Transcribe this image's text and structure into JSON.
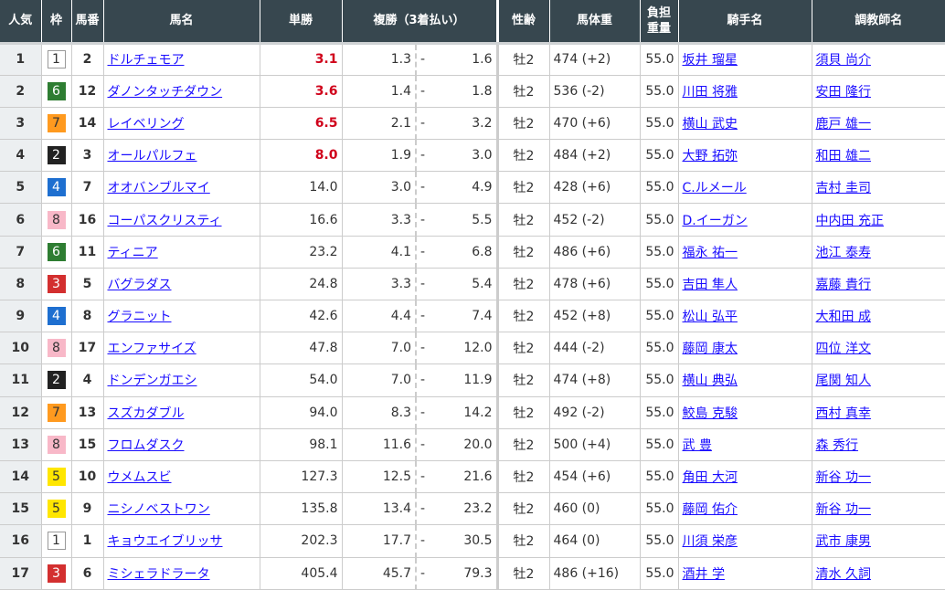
{
  "headers": {
    "rank": "人気",
    "waku": "枠",
    "num": "馬番",
    "name": "馬名",
    "win": "単勝",
    "place": "複勝（3着払い）",
    "sexage": "性齢",
    "weight": "馬体重",
    "burden_1": "負担",
    "burden_2": "重量",
    "jockey": "騎手名",
    "trainer": "調教師名"
  },
  "waku_colors": {
    "1": [
      "#ffffff",
      "#333333"
    ],
    "2": [
      "#222222",
      "#ffffff"
    ],
    "3": [
      "#d32f2f",
      "#ffffff"
    ],
    "4": [
      "#1e6fd0",
      "#ffffff"
    ],
    "5": [
      "#ffe600",
      "#333333"
    ],
    "6": [
      "#2e7d32",
      "#ffffff"
    ],
    "7": [
      "#ff9a1f",
      "#333333"
    ],
    "8": [
      "#f8b8c8",
      "#333333"
    ]
  },
  "place_sep": "-",
  "rows": [
    {
      "rank": "1",
      "waku": "1",
      "num": "2",
      "name": "ドルチェモア",
      "win": "3.1",
      "hot": true,
      "pmin": "1.3",
      "pmax": "1.6",
      "sexage": "牡2",
      "weight": "474 (+2)",
      "burden": "55.0",
      "jockey": "坂井 瑠星",
      "trainer": "須貝 尚介"
    },
    {
      "rank": "2",
      "waku": "6",
      "num": "12",
      "name": "ダノンタッチダウン",
      "win": "3.6",
      "hot": true,
      "pmin": "1.4",
      "pmax": "1.8",
      "sexage": "牡2",
      "weight": "536 (-2)",
      "burden": "55.0",
      "jockey": "川田 将雅",
      "trainer": "安田 隆行"
    },
    {
      "rank": "3",
      "waku": "7",
      "num": "14",
      "name": "レイベリング",
      "win": "6.5",
      "hot": true,
      "pmin": "2.1",
      "pmax": "3.2",
      "sexage": "牡2",
      "weight": "470 (+6)",
      "burden": "55.0",
      "jockey": "横山 武史",
      "trainer": "鹿戸 雄一"
    },
    {
      "rank": "4",
      "waku": "2",
      "num": "3",
      "name": "オールパルフェ",
      "win": "8.0",
      "hot": true,
      "pmin": "1.9",
      "pmax": "3.0",
      "sexage": "牡2",
      "weight": "484 (+2)",
      "burden": "55.0",
      "jockey": "大野 拓弥",
      "trainer": "和田 雄二"
    },
    {
      "rank": "5",
      "waku": "4",
      "num": "7",
      "name": "オオバンブルマイ",
      "win": "14.0",
      "hot": false,
      "pmin": "3.0",
      "pmax": "4.9",
      "sexage": "牡2",
      "weight": "428 (+6)",
      "burden": "55.0",
      "jockey": "C.ルメール",
      "trainer": "吉村 圭司"
    },
    {
      "rank": "6",
      "waku": "8",
      "num": "16",
      "name": "コーパスクリスティ",
      "win": "16.6",
      "hot": false,
      "pmin": "3.3",
      "pmax": "5.5",
      "sexage": "牡2",
      "weight": "452 (-2)",
      "burden": "55.0",
      "jockey": "D.イーガン",
      "trainer": "中内田 充正"
    },
    {
      "rank": "7",
      "waku": "6",
      "num": "11",
      "name": "ティニア",
      "win": "23.2",
      "hot": false,
      "pmin": "4.1",
      "pmax": "6.8",
      "sexage": "牡2",
      "weight": "486 (+6)",
      "burden": "55.0",
      "jockey": "福永 祐一",
      "trainer": "池江 泰寿"
    },
    {
      "rank": "8",
      "waku": "3",
      "num": "5",
      "name": "バグラダス",
      "win": "24.8",
      "hot": false,
      "pmin": "3.3",
      "pmax": "5.4",
      "sexage": "牡2",
      "weight": "478 (+6)",
      "burden": "55.0",
      "jockey": "吉田 隼人",
      "trainer": "嘉藤 貴行"
    },
    {
      "rank": "9",
      "waku": "4",
      "num": "8",
      "name": "グラニット",
      "win": "42.6",
      "hot": false,
      "pmin": "4.4",
      "pmax": "7.4",
      "sexage": "牡2",
      "weight": "452 (+8)",
      "burden": "55.0",
      "jockey": "松山 弘平",
      "trainer": "大和田 成"
    },
    {
      "rank": "10",
      "waku": "8",
      "num": "17",
      "name": "エンファサイズ",
      "win": "47.8",
      "hot": false,
      "pmin": "7.0",
      "pmax": "12.0",
      "sexage": "牡2",
      "weight": "444 (-2)",
      "burden": "55.0",
      "jockey": "藤岡 康太",
      "trainer": "四位 洋文"
    },
    {
      "rank": "11",
      "waku": "2",
      "num": "4",
      "name": "ドンデンガエシ",
      "win": "54.0",
      "hot": false,
      "pmin": "7.0",
      "pmax": "11.9",
      "sexage": "牡2",
      "weight": "474 (+8)",
      "burden": "55.0",
      "jockey": "横山 典弘",
      "trainer": "尾関 知人"
    },
    {
      "rank": "12",
      "waku": "7",
      "num": "13",
      "name": "スズカダブル",
      "win": "94.0",
      "hot": false,
      "pmin": "8.3",
      "pmax": "14.2",
      "sexage": "牡2",
      "weight": "492 (-2)",
      "burden": "55.0",
      "jockey": "鮫島 克駿",
      "trainer": "西村 真幸"
    },
    {
      "rank": "13",
      "waku": "8",
      "num": "15",
      "name": "フロムダスク",
      "win": "98.1",
      "hot": false,
      "pmin": "11.6",
      "pmax": "20.0",
      "sexage": "牡2",
      "weight": "500 (+4)",
      "burden": "55.0",
      "jockey": "武 豊",
      "trainer": "森 秀行"
    },
    {
      "rank": "14",
      "waku": "5",
      "num": "10",
      "name": "ウメムスビ",
      "win": "127.3",
      "hot": false,
      "pmin": "12.5",
      "pmax": "21.6",
      "sexage": "牡2",
      "weight": "454 (+6)",
      "burden": "55.0",
      "jockey": "角田 大河",
      "trainer": "新谷 功一"
    },
    {
      "rank": "15",
      "waku": "5",
      "num": "9",
      "name": "ニシノベストワン",
      "win": "135.8",
      "hot": false,
      "pmin": "13.4",
      "pmax": "23.2",
      "sexage": "牡2",
      "weight": "460 (0)",
      "burden": "55.0",
      "jockey": "藤岡 佑介",
      "trainer": "新谷 功一"
    },
    {
      "rank": "16",
      "waku": "1",
      "num": "1",
      "name": "キョウエイブリッサ",
      "win": "202.3",
      "hot": false,
      "pmin": "17.7",
      "pmax": "30.5",
      "sexage": "牡2",
      "weight": "464 (0)",
      "burden": "55.0",
      "jockey": "川須 栄彦",
      "trainer": "武市 康男"
    },
    {
      "rank": "17",
      "waku": "3",
      "num": "6",
      "name": "ミシェラドラータ",
      "win": "405.4",
      "hot": false,
      "pmin": "45.7",
      "pmax": "79.3",
      "sexage": "牡2",
      "weight": "486 (+16)",
      "burden": "55.0",
      "jockey": "酒井 学",
      "trainer": "清水 久詞"
    }
  ]
}
